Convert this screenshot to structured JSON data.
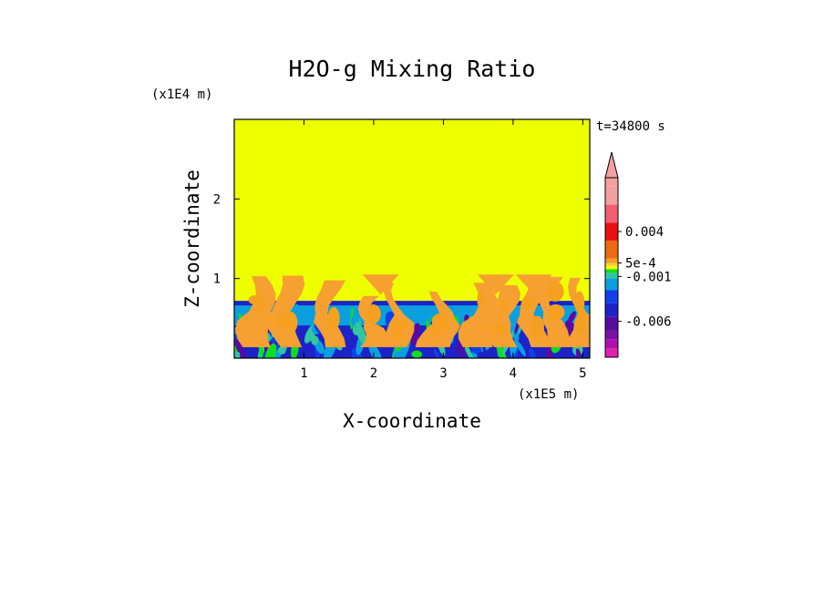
{
  "chart_data": {
    "type": "heatmap",
    "title": "H2O-g Mixing Ratio",
    "time_label": "t=34800 s",
    "x_axis": {
      "label": "X-coordinate",
      "unit": "(x1E5 m)",
      "range": [
        0,
        5.1
      ],
      "ticks": [
        1,
        2,
        3,
        4,
        5
      ],
      "tick_labels": [
        "1",
        "2",
        "3",
        "4",
        "5"
      ]
    },
    "z_axis": {
      "label": "Z-coordinate",
      "unit": "(x1E4 m)",
      "range": [
        0,
        3.0
      ],
      "ticks": [
        1,
        2
      ],
      "tick_labels": [
        "1",
        "2"
      ]
    },
    "colorbar": {
      "labels": [
        {
          "text": "0.004",
          "value": 0.004
        },
        {
          "text": "5e-4",
          "value": 0.0005
        },
        {
          "text": "-0.001",
          "value": -0.001
        },
        {
          "text": "-0.006",
          "value": -0.006
        }
      ],
      "bands": [
        {
          "color": "#e020b0",
          "value": -0.009
        },
        {
          "color": "#b010b0",
          "value": -0.008
        },
        {
          "color": "#7a10a8",
          "value": -0.007
        },
        {
          "color": "#5a0aa0",
          "value": -0.0055
        },
        {
          "color": "#1d23c8",
          "value": -0.004
        },
        {
          "color": "#1040e8",
          "value": -0.0025
        },
        {
          "color": "#0aa0e0",
          "value": -0.0012
        },
        {
          "color": "#30c8a0",
          "value": -0.0006
        },
        {
          "color": "#10dd20",
          "value": -0.0002
        },
        {
          "color": "#eeff00",
          "value": 0.0002
        },
        {
          "color": "#ffc840",
          "value": 0.0005
        },
        {
          "color": "#f5a020",
          "value": 0.001
        },
        {
          "color": "#ee6a10",
          "value": 0.003
        },
        {
          "color": "#e81010",
          "value": 0.005
        },
        {
          "color": "#f06070",
          "value": 0.007
        },
        {
          "color": "#f4a0a0",
          "value": 0.009
        }
      ]
    },
    "regions": {
      "background_color": "#eeff00",
      "cloud_color": "#f5a030",
      "boundary_layer_top_z": 0.72,
      "convective_plume_max_z": 1.05
    }
  }
}
